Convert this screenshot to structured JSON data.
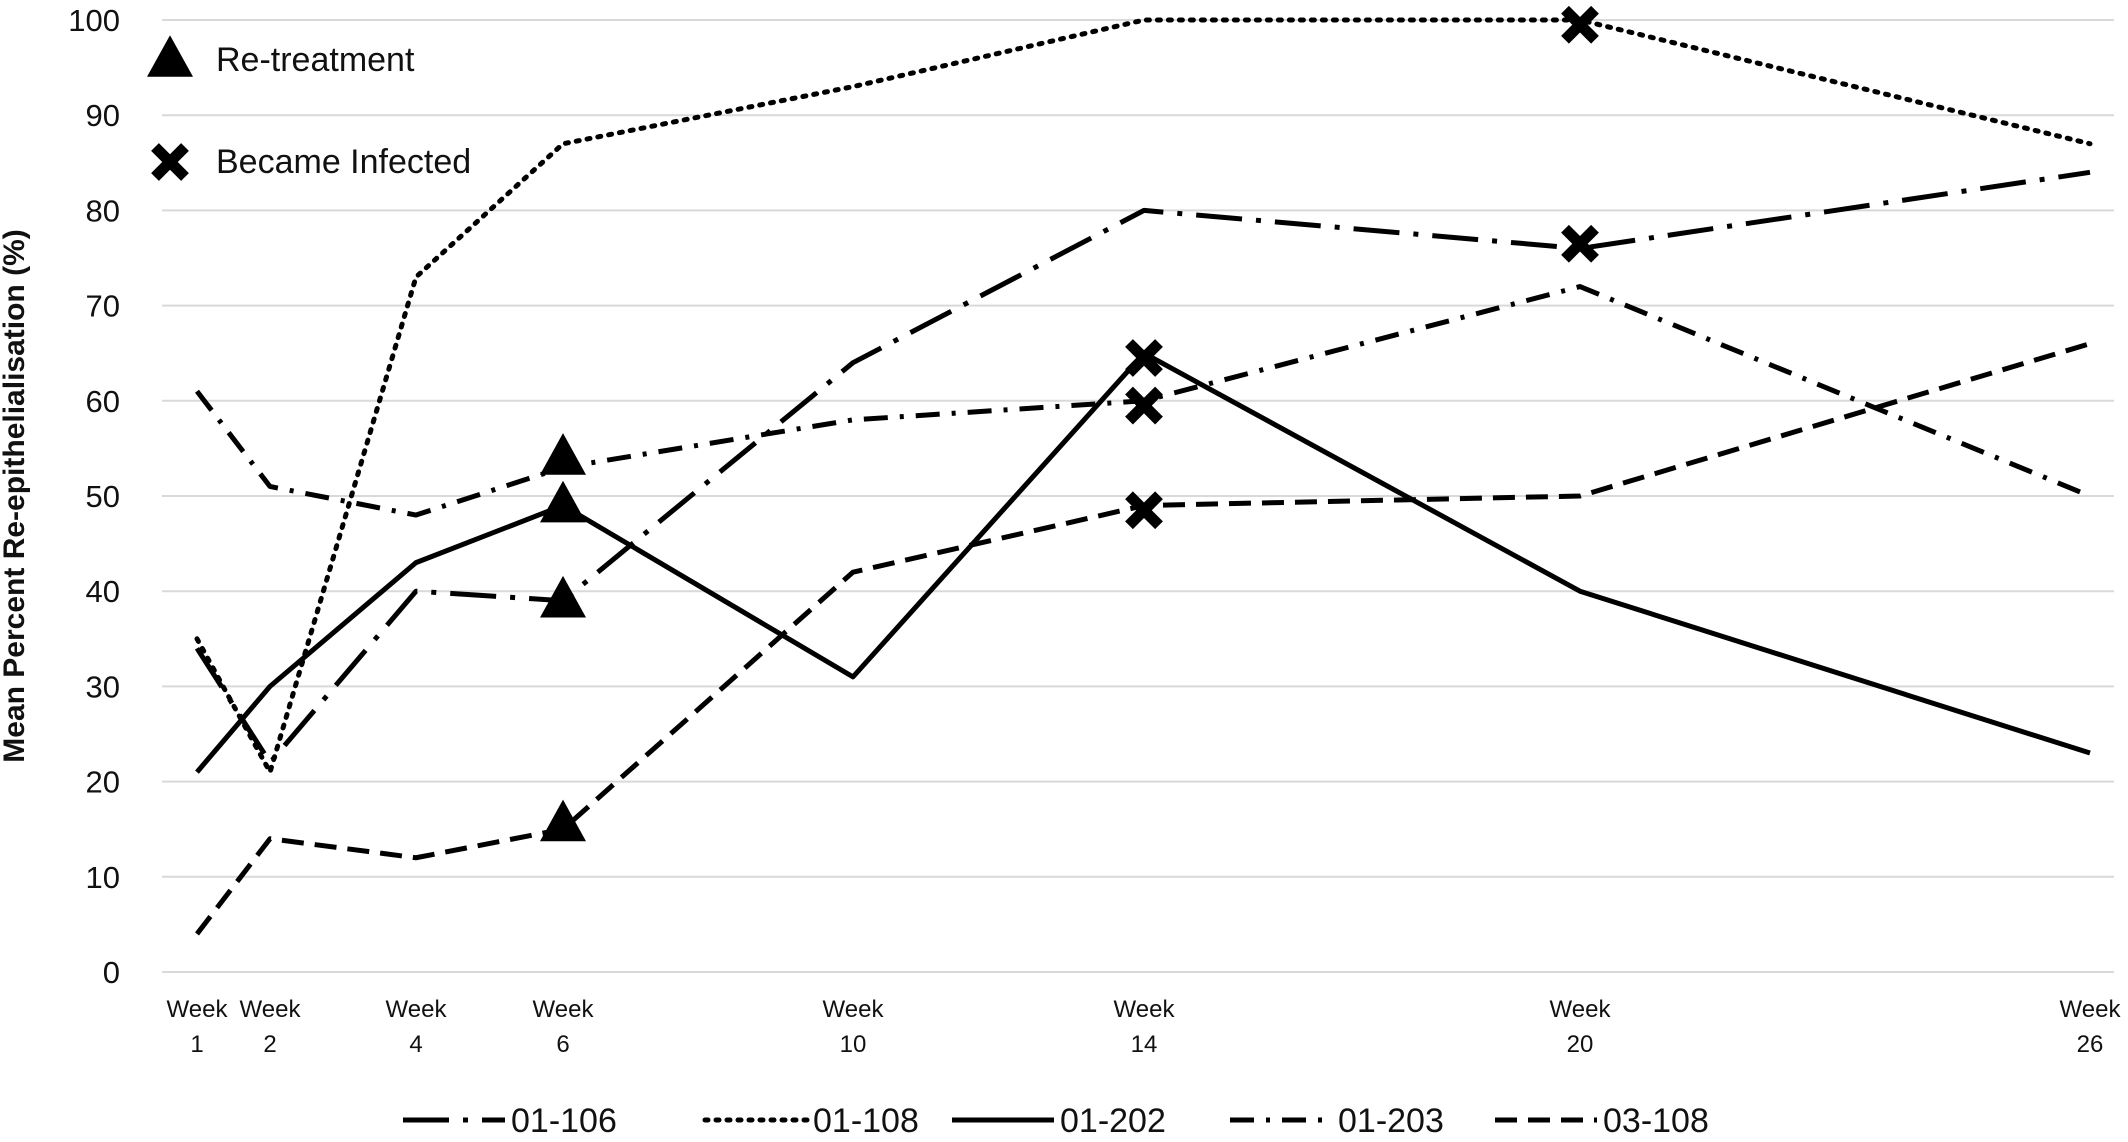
{
  "chart_data": {
    "type": "line",
    "title": "",
    "xlabel": "",
    "ylabel": "Mean Percent Re-epithelialisation (%)",
    "ylim": [
      0,
      100
    ],
    "yticks": [
      0,
      10,
      20,
      30,
      40,
      50,
      60,
      70,
      80,
      90,
      100
    ],
    "grid": "horizontal",
    "legend_position": "bottom",
    "x_axis": {
      "unit_label": "Week",
      "values": [
        1,
        2,
        4,
        6,
        10,
        14,
        20,
        26
      ]
    },
    "series": [
      {
        "name": "01-106",
        "dash": "long-dash-dot",
        "x": [
          1,
          2,
          4,
          6,
          10,
          14,
          20,
          26
        ],
        "values": [
          34,
          22,
          40,
          39,
          64,
          80,
          76,
          84
        ]
      },
      {
        "name": "01-108",
        "dash": "dotted",
        "x": [
          1,
          2,
          4,
          6,
          10,
          14,
          20,
          26
        ],
        "values": [
          35,
          21,
          73,
          87,
          93,
          100,
          100,
          87
        ]
      },
      {
        "name": "01-202",
        "dash": "solid",
        "x": [
          1,
          2,
          4,
          6,
          10,
          14,
          20,
          26
        ],
        "values": [
          21,
          30,
          43,
          49,
          31,
          65,
          40,
          23
        ]
      },
      {
        "name": "01-203",
        "dash": "dash-dot",
        "x": [
          1,
          2,
          4,
          6,
          10,
          14,
          20,
          26
        ],
        "values": [
          61,
          51,
          48,
          53,
          58,
          60,
          72,
          50
        ]
      },
      {
        "name": "03-108",
        "dash": "dashed",
        "x": [
          1,
          2,
          4,
          6,
          10,
          14,
          20,
          26
        ],
        "values": [
          4,
          14,
          12,
          15,
          42,
          49,
          50,
          66
        ]
      }
    ],
    "annotations": {
      "legend_items": [
        {
          "symbol": "triangle",
          "label": "Re-treatment"
        },
        {
          "symbol": "cross",
          "label": "Became Infected"
        }
      ],
      "markers": [
        {
          "symbol": "triangle",
          "x": 6,
          "y": 54
        },
        {
          "symbol": "triangle",
          "x": 6,
          "y": 49
        },
        {
          "symbol": "triangle",
          "x": 6,
          "y": 39
        },
        {
          "symbol": "triangle",
          "x": 6,
          "y": 15.5
        },
        {
          "symbol": "cross",
          "x": 14,
          "y": 64.5
        },
        {
          "symbol": "cross",
          "x": 14,
          "y": 59.5
        },
        {
          "symbol": "cross",
          "x": 14,
          "y": 48.5
        },
        {
          "symbol": "cross",
          "x": 20,
          "y": 99.5
        },
        {
          "symbol": "cross",
          "x": 20,
          "y": 76.5
        }
      ]
    },
    "colors": {
      "line": "#000000",
      "grid": "#d9d9d9",
      "text": "#111111"
    }
  }
}
